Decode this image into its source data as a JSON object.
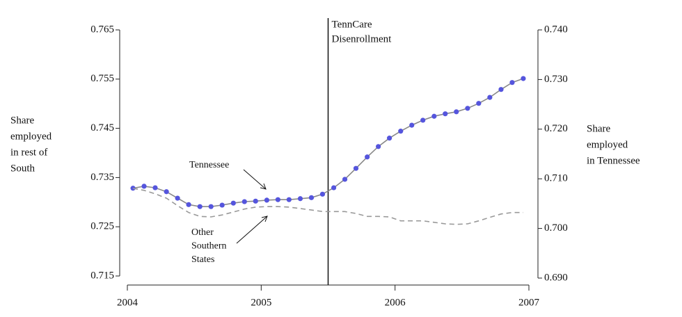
{
  "chart_data": {
    "type": "line",
    "x": [
      2004.042,
      2004.125,
      2004.208,
      2004.292,
      2004.375,
      2004.458,
      2004.542,
      2004.625,
      2004.708,
      2004.792,
      2004.875,
      2004.958,
      2005.042,
      2005.125,
      2005.208,
      2005.292,
      2005.375,
      2005.458,
      2005.542,
      2005.625,
      2005.708,
      2005.792,
      2005.875,
      2005.958,
      2006.042,
      2006.125,
      2006.208,
      2006.292,
      2006.375,
      2006.458,
      2006.542,
      2006.625,
      2006.708,
      2006.792,
      2006.875,
      2006.958
    ],
    "series": [
      {
        "name": "Tennessee",
        "color": "#5555dd",
        "line_color": "#888888",
        "axis": "y2",
        "markers": true,
        "dashed": false,
        "values": [
          0.7081,
          0.7085,
          0.7082,
          0.7074,
          0.7061,
          0.7048,
          0.7044,
          0.7044,
          0.7047,
          0.7051,
          0.7054,
          0.7055,
          0.7057,
          0.7058,
          0.7058,
          0.706,
          0.7062,
          0.7069,
          0.7082,
          0.7099,
          0.7121,
          0.7144,
          0.7165,
          0.7182,
          0.7196,
          0.7208,
          0.7218,
          0.7226,
          0.7231,
          0.7235,
          0.7242,
          0.7252,
          0.7264,
          0.728,
          0.7294,
          0.7302
        ]
      },
      {
        "name": "Other Southern States",
        "color": "#999999",
        "axis": "y",
        "markers": false,
        "dashed": true,
        "values": [
          0.7328,
          0.7324,
          0.7317,
          0.7308,
          0.7293,
          0.7279,
          0.7271,
          0.727,
          0.7274,
          0.728,
          0.7286,
          0.729,
          0.7291,
          0.7291,
          0.729,
          0.7287,
          0.7284,
          0.7281,
          0.7281,
          0.7281,
          0.7277,
          0.7271,
          0.7271,
          0.727,
          0.7262,
          0.7262,
          0.7262,
          0.7259,
          0.7256,
          0.7255,
          0.7256,
          0.7262,
          0.7269,
          0.7276,
          0.7279,
          0.7279
        ]
      }
    ],
    "xlim": [
      2004,
      2007
    ],
    "xticks": [
      2004,
      2005,
      2006,
      2007
    ],
    "ylim": [
      0.715,
      0.765
    ],
    "yticks": [
      0.715,
      0.725,
      0.735,
      0.745,
      0.755,
      0.765
    ],
    "y2lim": [
      0.69,
      0.74
    ],
    "y2ticks": [
      {
        "value": 0.69,
        "label": "0.690"
      },
      {
        "value": 0.7,
        "label": "0.700"
      },
      {
        "value": 0.71,
        "label": "0.710"
      },
      {
        "value": 0.72,
        "label": "0.720"
      },
      {
        "value": 0.73,
        "label": "0.730"
      },
      {
        "value": 0.74,
        "label": "0.740"
      }
    ],
    "ylabel": [
      "Share",
      "employed",
      "in rest of",
      "South"
    ],
    "y2label": [
      "Share",
      "employed",
      "in Tennessee"
    ],
    "annotation": {
      "x": 2005.5,
      "text": [
        "TennCare",
        "Disenrollment"
      ]
    }
  }
}
